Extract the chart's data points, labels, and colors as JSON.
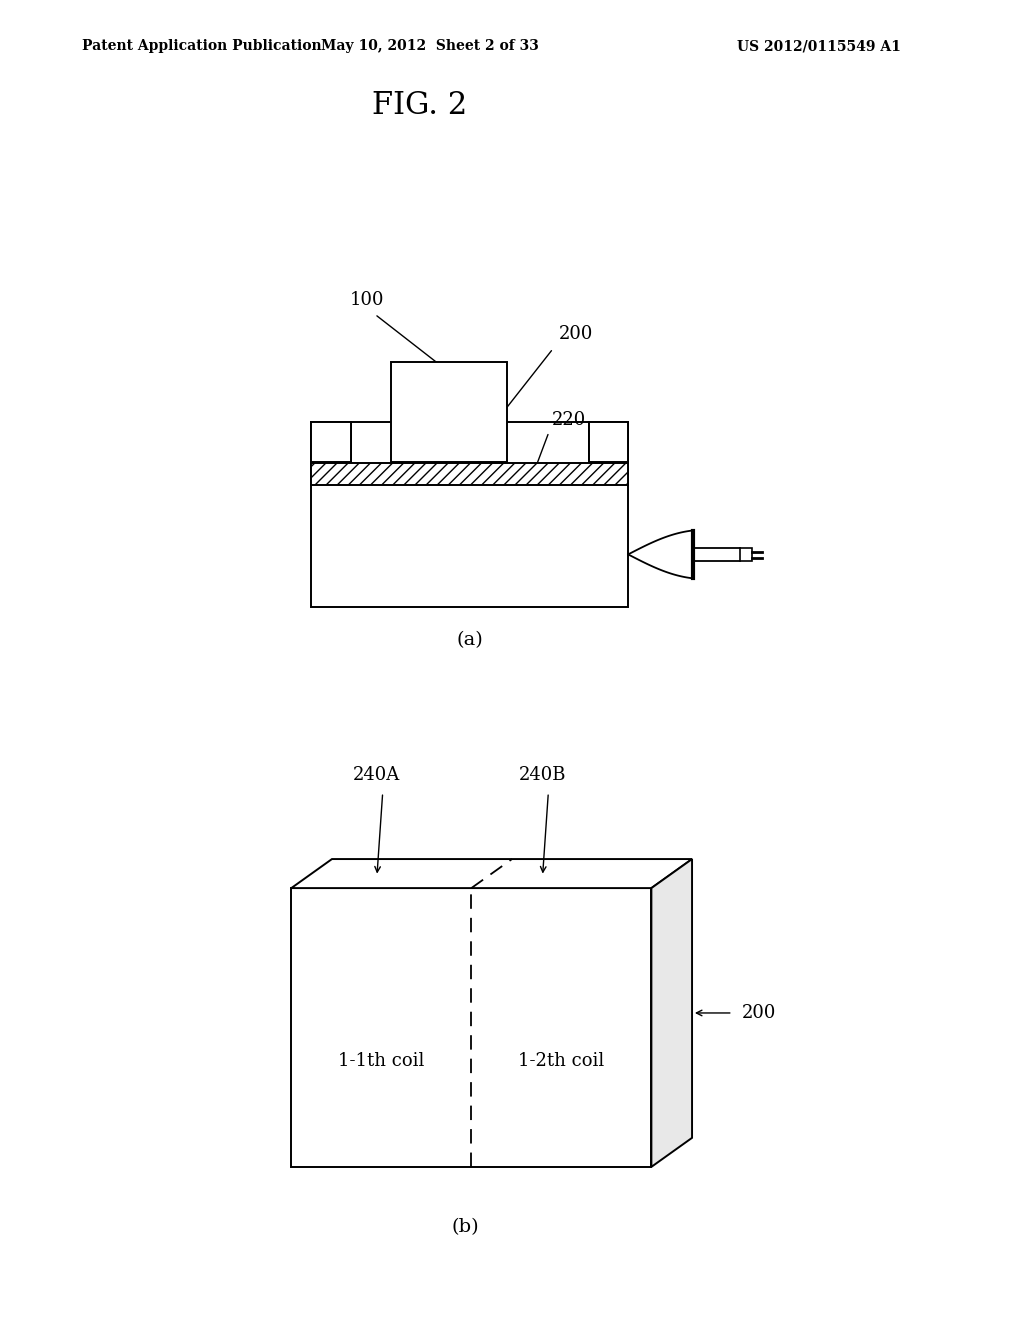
{
  "bg_color": "#ffffff",
  "header_left": "Patent Application Publication",
  "header_mid": "May 10, 2012  Sheet 2 of 33",
  "header_right": "US 2012/0115549 A1",
  "fig_title": "FIG. 2",
  "label_a": "(a)",
  "label_b": "(b)"
}
